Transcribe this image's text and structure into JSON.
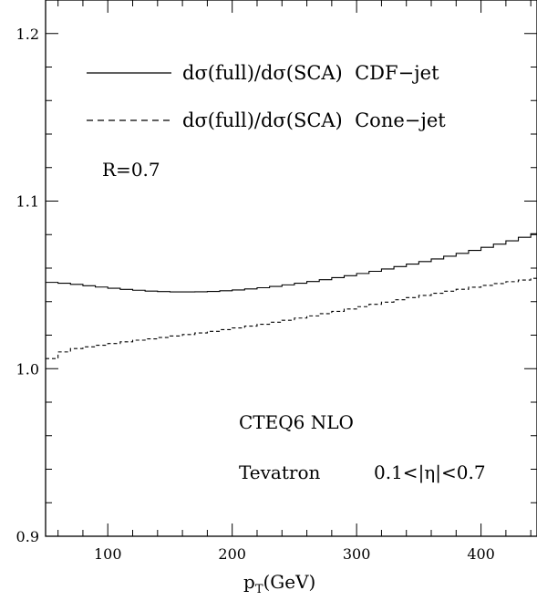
{
  "chart_data": {
    "type": "line",
    "title": "",
    "xlabel": "p",
    "xlabel_sub": "T",
    "xlabel_unit": "(GeV)",
    "ylabel": "",
    "xlim": [
      50,
      445
    ],
    "ylim": [
      0.9,
      1.22
    ],
    "x_ticks": [
      100,
      200,
      300,
      400
    ],
    "x_tick_labels": [
      "100",
      "200",
      "300",
      "400"
    ],
    "y_ticks": [
      0.9,
      1.0,
      1.1,
      1.2
    ],
    "y_tick_labels": [
      "0.9",
      "1.0",
      "1.1",
      "1.2"
    ],
    "grid": false,
    "legend_position": "top",
    "x": [
      50,
      60,
      70,
      80,
      90,
      100,
      110,
      120,
      130,
      140,
      150,
      160,
      170,
      180,
      190,
      200,
      210,
      220,
      230,
      240,
      250,
      260,
      270,
      280,
      290,
      300,
      310,
      320,
      330,
      340,
      350,
      360,
      370,
      380,
      390,
      400,
      410,
      420,
      430,
      440
    ],
    "series": [
      {
        "name": "dσ(full)/dσ(SCA)  CDF−jet",
        "style": "solid",
        "values": [
          1.0515,
          1.051,
          1.0503,
          1.0495,
          1.0487,
          1.048,
          1.0473,
          1.0468,
          1.0463,
          1.046,
          1.0458,
          1.0458,
          1.0459,
          1.0461,
          1.0465,
          1.047,
          1.0476,
          1.0483,
          1.0491,
          1.05,
          1.051,
          1.052,
          1.0531,
          1.0543,
          1.0555,
          1.0568,
          1.0581,
          1.0595,
          1.0609,
          1.0624,
          1.0639,
          1.0655,
          1.0671,
          1.0688,
          1.0706,
          1.0724,
          1.0743,
          1.0763,
          1.0784,
          1.0805
        ]
      },
      {
        "name": "dσ(full)/dσ(SCA)  Cone−jet",
        "style": "dashed",
        "values": [
          1.006,
          1.01,
          1.012,
          1.013,
          1.014,
          1.015,
          1.016,
          1.017,
          1.0178,
          1.0186,
          1.0195,
          1.0204,
          1.0213,
          1.0223,
          1.0233,
          1.0243,
          1.0254,
          1.0265,
          1.0277,
          1.0289,
          1.0302,
          1.0315,
          1.0328,
          1.0342,
          1.0356,
          1.037,
          1.0384,
          1.0397,
          1.0411,
          1.0424,
          1.0437,
          1.045,
          1.0462,
          1.0474,
          1.0486,
          1.0497,
          1.0508,
          1.0519,
          1.0529,
          1.0539
        ]
      }
    ],
    "annotations": {
      "r_value": "R=0.7",
      "pdf": "CTEQ6 NLO",
      "collider": "Tevatron",
      "eta_range": "0.1<|η|<0.7"
    }
  }
}
